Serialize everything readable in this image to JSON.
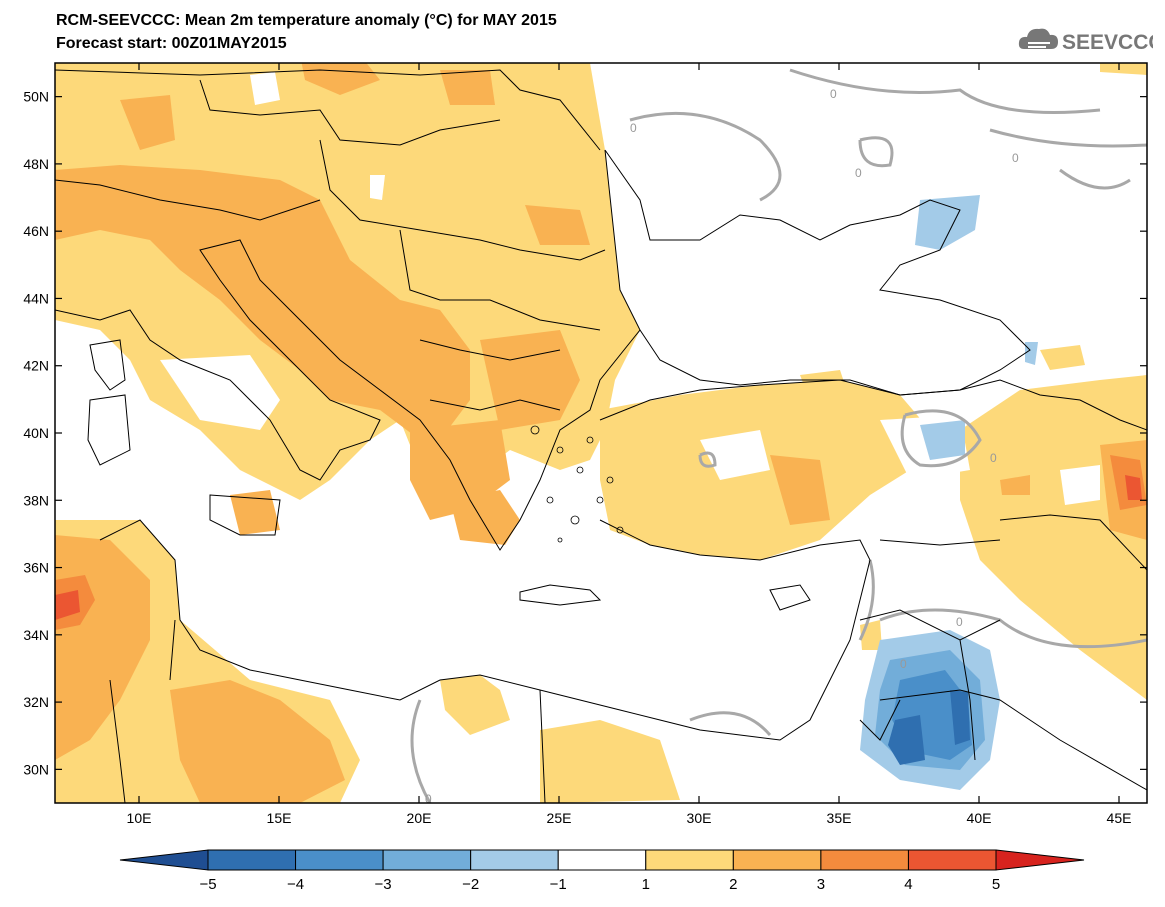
{
  "title": "RCM-SEEVCCC: Mean 2m temperature anomaly (°C) for MAY 2015",
  "subtitle": "Forecast start: 00Z01MAY2015",
  "logo_text": "SEEVCCC",
  "map": {
    "lon_range": [
      7,
      46
    ],
    "lat_range": [
      29,
      51
    ],
    "lat_ticks": [
      "50N",
      "48N",
      "46N",
      "44N",
      "42N",
      "40N",
      "38N",
      "36N",
      "34N",
      "32N",
      "30N"
    ],
    "lat_values": [
      50,
      48,
      46,
      44,
      42,
      40,
      38,
      36,
      34,
      32,
      30
    ],
    "lon_ticks": [
      "10E",
      "15E",
      "20E",
      "25E",
      "30E",
      "35E",
      "40E",
      "45E"
    ],
    "lon_values": [
      10,
      15,
      20,
      25,
      30,
      35,
      40,
      45
    ],
    "contour_label": "0"
  },
  "colorbar": {
    "labels": [
      "−5",
      "−4",
      "−3",
      "−2",
      "−1",
      "1",
      "2",
      "3",
      "4",
      "5"
    ],
    "colors": [
      "#1f4e92",
      "#2f6fb0",
      "#4a8fc9",
      "#72add9",
      "#a3cbe8",
      "#ffffff",
      "#fdd97a",
      "#f9b252",
      "#f48b3d",
      "#eb5632",
      "#d7231e"
    ]
  }
}
